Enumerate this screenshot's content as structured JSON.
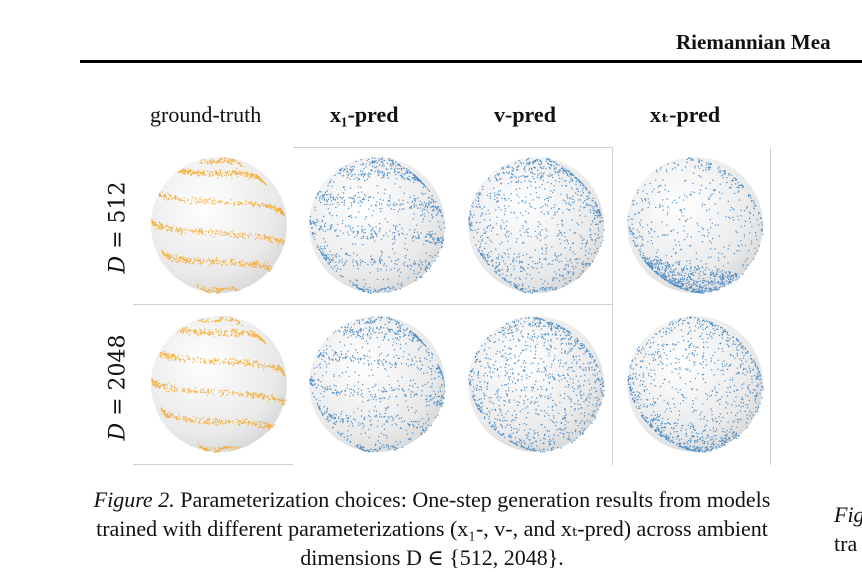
{
  "header": {
    "title": "Riemannian Mea"
  },
  "columns": [
    {
      "label": "ground-truth",
      "style": "plain"
    },
    {
      "label": "x₁-pred",
      "style": "bold"
    },
    {
      "label": "v-pred",
      "style": "bold"
    },
    {
      "label": "xₜ-pred",
      "style": "bold"
    }
  ],
  "rows": [
    {
      "symbol": "D",
      "label": " = 512"
    },
    {
      "symbol": "D",
      "label": " = 2048"
    }
  ],
  "colors": {
    "ground_truth": "#f5a623",
    "generated": "#2f7bbf",
    "sphere": "#e9e9e9"
  },
  "caption": {
    "figure_label": "Figure 2.",
    "text": " Parameterization choices: One-step generation results from models trained with different parameterizations (x₁-, v-, and xₜ-pred) across ambient dimensions D ∈ {512, 2048}."
  },
  "side_fragments": [
    "Fig",
    "tra"
  ]
}
